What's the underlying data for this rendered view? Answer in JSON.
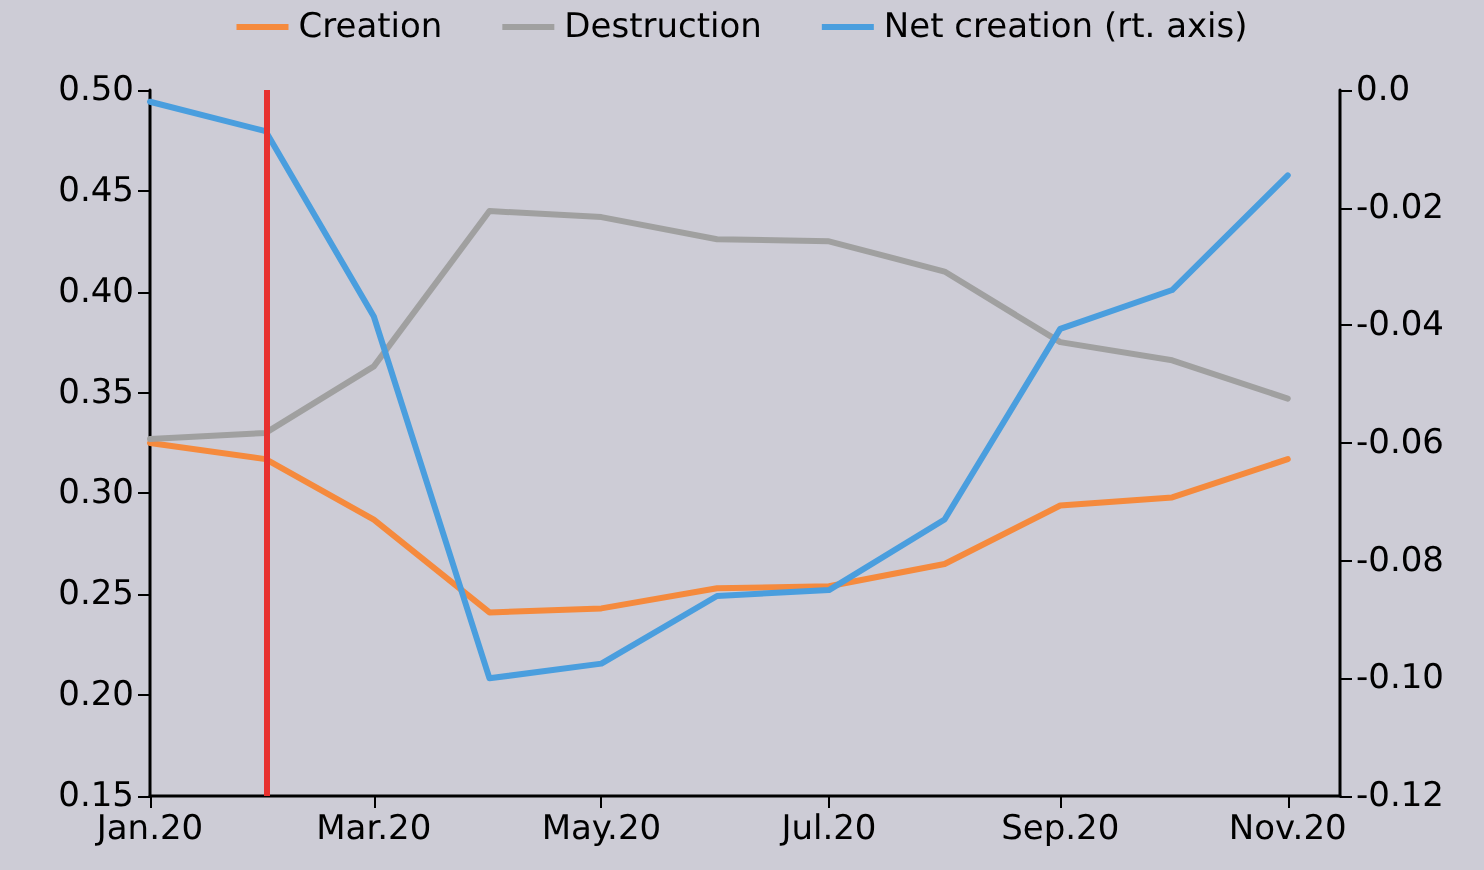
{
  "chart_data": {
    "type": "line",
    "x": [
      "2020-01",
      "2020-02",
      "2020-03",
      "2020-04",
      "2020-05",
      "2020-06",
      "2020-07",
      "2020-08",
      "2020-09",
      "2020-10",
      "2020-11"
    ],
    "series": [
      {
        "name": "Creation",
        "color": "#f58a3d",
        "values": [
          0.325,
          0.317,
          0.287,
          0.241,
          0.243,
          0.253,
          0.254,
          0.265,
          0.294,
          0.298,
          0.317
        ]
      },
      {
        "name": "Destruction",
        "color": "#a0a0a0",
        "values": [
          0.327,
          0.33,
          0.363,
          0.44,
          0.437,
          0.426,
          0.425,
          0.41,
          0.375,
          0.366,
          0.347
        ]
      },
      {
        "name": "Net creation (rt. axis)",
        "color": "#4a9ede",
        "axis": "y2",
        "values": [
          -0.002,
          -0.007,
          -0.0385,
          -0.1,
          -0.0975,
          -0.086,
          -0.085,
          -0.073,
          -0.0406,
          -0.034,
          -0.0145
        ]
      }
    ],
    "xlim": [
      "2020-01",
      "2020-11-15"
    ],
    "xticks": [
      {
        "value": "2020-01",
        "label": "Jan.20"
      },
      {
        "value": "2020-03",
        "label": "Mar.20"
      },
      {
        "value": "2020-05",
        "label": "May.20"
      },
      {
        "value": "2020-07",
        "label": "Jul.20"
      },
      {
        "value": "2020-09",
        "label": "Sep.20"
      },
      {
        "value": "2020-11",
        "label": "Nov.20"
      }
    ],
    "ylim": [
      0.15,
      0.5
    ],
    "yticks": [
      {
        "value": 0.15,
        "label": "0.15"
      },
      {
        "value": 0.2,
        "label": "0.20"
      },
      {
        "value": 0.25,
        "label": "0.25"
      },
      {
        "value": 0.3,
        "label": "0.30"
      },
      {
        "value": 0.35,
        "label": "0.35"
      },
      {
        "value": 0.4,
        "label": "0.40"
      },
      {
        "value": 0.45,
        "label": "0.45"
      },
      {
        "value": 0.5,
        "label": "0.50"
      }
    ],
    "y2lim": [
      -0.12,
      0
    ],
    "y2ticks": [
      {
        "value": -0.12,
        "label": "-0.12"
      },
      {
        "value": -0.1,
        "label": "-0.10"
      },
      {
        "value": -0.08,
        "label": "-0.08"
      },
      {
        "value": -0.06,
        "label": "-0.06"
      },
      {
        "value": -0.04,
        "label": "-0.04"
      },
      {
        "value": -0.02,
        "label": "-0.02"
      },
      {
        "value": 0,
        "label": "0.0"
      }
    ],
    "ref_lines": [
      {
        "axis": "x",
        "value": "2020-02",
        "color": "#e8312f"
      }
    ],
    "grid": false,
    "legend": "top",
    "marker": "none",
    "line_style": "solid"
  }
}
